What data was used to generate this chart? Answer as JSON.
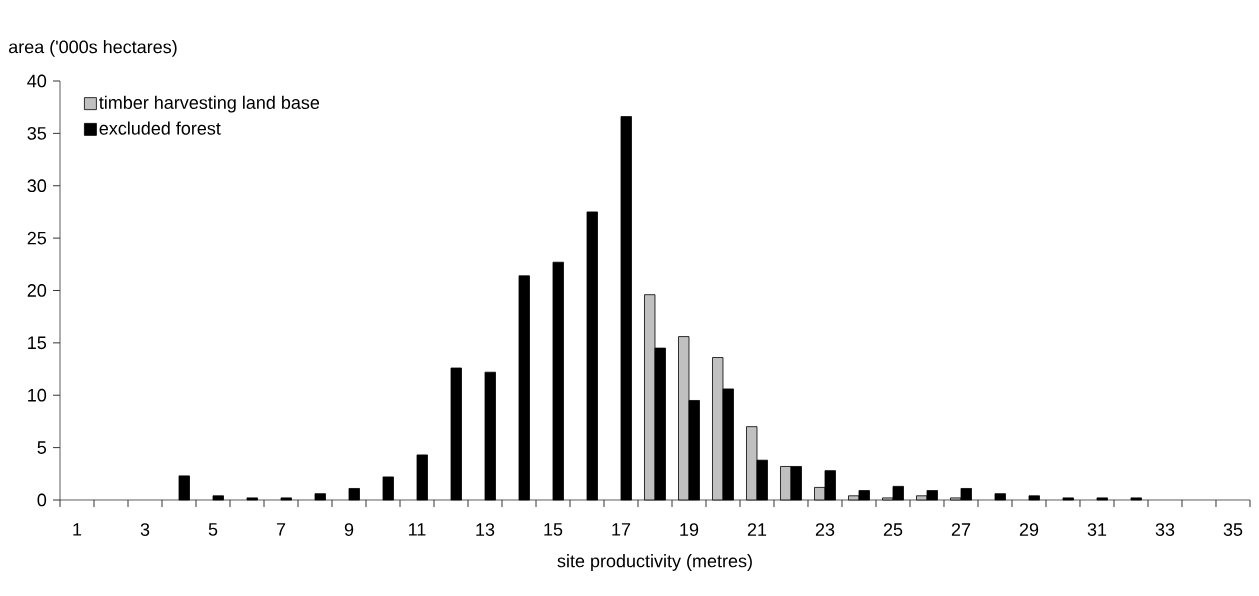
{
  "chart_data": {
    "type": "bar",
    "xlabel": "site productivity (metres)",
    "ylabel": "area ('000s hectares)",
    "categories": [
      "1",
      null,
      "3",
      null,
      "5",
      null,
      "7",
      null,
      "9",
      null,
      "11",
      null,
      "13",
      null,
      "15",
      null,
      "17",
      null,
      "19",
      null,
      "21",
      null,
      "23",
      null,
      "25",
      null,
      "27",
      null,
      "29",
      null,
      "31",
      null,
      "33",
      null,
      "35"
    ],
    "series": [
      {
        "name": "timber harvesting land base",
        "color": "#c0c0c0",
        "values": [
          null,
          null,
          null,
          null,
          null,
          null,
          null,
          null,
          null,
          null,
          null,
          null,
          null,
          null,
          null,
          null,
          null,
          19.6,
          15.6,
          13.6,
          7.0,
          3.2,
          1.2,
          0.4,
          0.2,
          0.4,
          0.2,
          null,
          null,
          null,
          null,
          null,
          null,
          null,
          null
        ]
      },
      {
        "name": "excluded forest",
        "color": "#000000",
        "values": [
          null,
          null,
          null,
          2.3,
          0.4,
          0.2,
          0.2,
          0.6,
          1.1,
          2.2,
          4.3,
          12.6,
          12.2,
          21.4,
          22.7,
          27.5,
          36.6,
          14.5,
          9.5,
          10.6,
          3.8,
          3.2,
          2.8,
          0.9,
          1.3,
          0.9,
          1.1,
          0.6,
          0.4,
          0.2,
          0.2,
          0.2,
          null,
          null,
          null
        ]
      }
    ],
    "ylim": [
      0,
      40
    ],
    "yticks": [
      0,
      5,
      10,
      15,
      20,
      25,
      30,
      35,
      40
    ],
    "legend": "top left"
  }
}
